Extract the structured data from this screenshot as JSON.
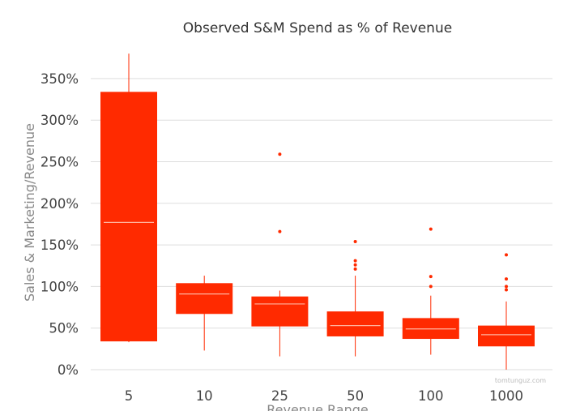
{
  "chart_data": {
    "type": "box",
    "title": "Observed S&M Spend as % of Revenue",
    "xlabel": "Revenue Range",
    "ylabel": "Sales & Marketing/Revenue",
    "ylim": [
      0,
      380
    ],
    "yticks": [
      0,
      50,
      100,
      150,
      200,
      250,
      300,
      350
    ],
    "ytick_labels": [
      "0%",
      "50%",
      "100%",
      "150%",
      "200%",
      "250%",
      "300%",
      "350%"
    ],
    "categories": [
      "5",
      "10",
      "25",
      "50",
      "100",
      "1000"
    ],
    "boxes": [
      {
        "category": "5",
        "whisker_low": 33,
        "q1": 34,
        "median": 177,
        "q3": 334,
        "whisker_high": 380,
        "outliers": []
      },
      {
        "category": "10",
        "whisker_low": 23,
        "q1": 67,
        "median": 91,
        "q3": 104,
        "whisker_high": 113,
        "outliers": []
      },
      {
        "category": "25",
        "whisker_low": 16,
        "q1": 52,
        "median": 79,
        "q3": 88,
        "whisker_high": 95,
        "outliers": [
          166,
          259
        ]
      },
      {
        "category": "50",
        "whisker_low": 16,
        "q1": 40,
        "median": 53,
        "q3": 70,
        "whisker_high": 113,
        "outliers": [
          121,
          126,
          131,
          154
        ]
      },
      {
        "category": "100",
        "whisker_low": 18,
        "q1": 37,
        "median": 49,
        "q3": 62,
        "whisker_high": 89,
        "outliers": [
          100,
          112,
          169
        ]
      },
      {
        "category": "1000",
        "whisker_low": 0,
        "q1": 28,
        "median": 42,
        "q3": 53,
        "whisker_high": 82,
        "outliers": [
          96,
          100,
          109,
          138
        ]
      }
    ],
    "colors": {
      "box": "#ff2a00",
      "median": "#ffb4a0",
      "grid": "#dddddd"
    },
    "grid": true,
    "watermark": "tomtunguz.com"
  }
}
